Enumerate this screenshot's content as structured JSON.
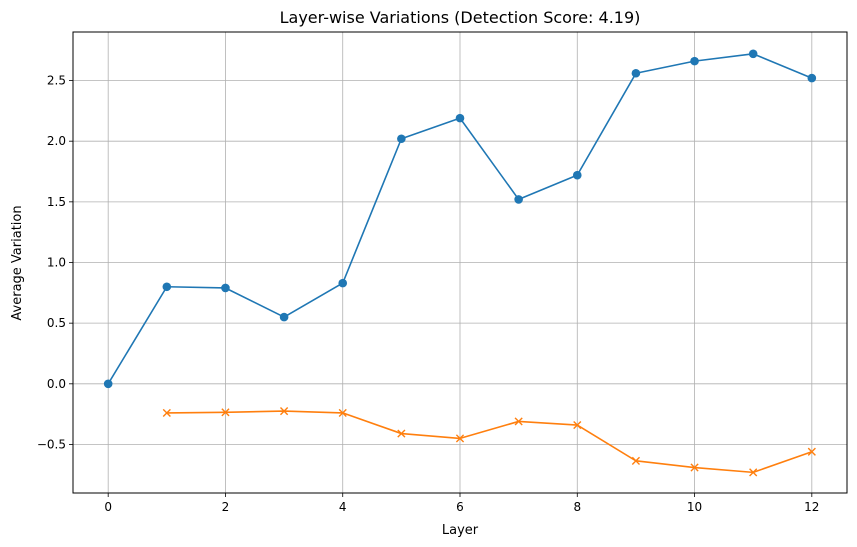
{
  "chart_data": {
    "type": "line",
    "title": "Layer-wise Variations (Detection Score: 4.19)",
    "xlabel": "Layer",
    "ylabel": "Average Variation",
    "xlim": [
      -0.6,
      12.6
    ],
    "ylim": [
      -0.9,
      2.9
    ],
    "xticks": [
      0,
      2,
      4,
      6,
      8,
      10,
      12
    ],
    "xtick_labels": [
      "0",
      "2",
      "4",
      "6",
      "8",
      "10",
      "12"
    ],
    "yticks": [
      -0.5,
      0.0,
      0.5,
      1.0,
      1.5,
      2.0,
      2.5
    ],
    "ytick_labels": [
      "−0.5",
      "0.0",
      "0.5",
      "1.0",
      "1.5",
      "2.0",
      "2.5"
    ],
    "grid": true,
    "series": [
      {
        "color": "#1f77b4",
        "marker": "circle",
        "x": [
          0,
          1,
          2,
          3,
          4,
          5,
          6,
          7,
          8,
          9,
          10,
          11,
          12
        ],
        "values": [
          0.0,
          0.8,
          0.79,
          0.55,
          0.83,
          2.02,
          2.19,
          1.52,
          1.72,
          2.56,
          2.66,
          2.72,
          2.52
        ]
      },
      {
        "color": "#ff7f0e",
        "marker": "x",
        "x": [
          1,
          2,
          3,
          4,
          5,
          6,
          7,
          8,
          9,
          10,
          11,
          12
        ],
        "values": [
          -0.24,
          -0.235,
          -0.225,
          -0.24,
          -0.41,
          -0.45,
          -0.31,
          -0.34,
          -0.635,
          -0.69,
          -0.73,
          -0.56
        ]
      }
    ]
  }
}
